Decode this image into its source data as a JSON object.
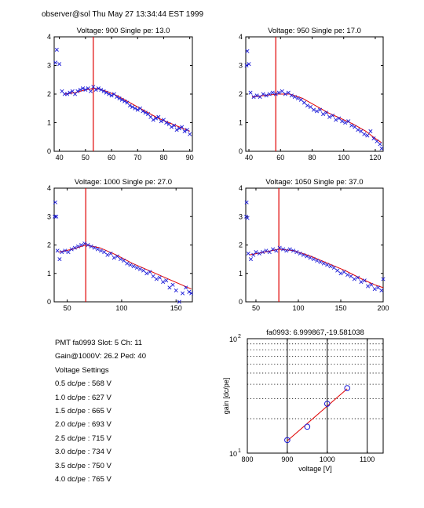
{
  "header": "observer@sol Thu May 27 13:34:44 EST 1999",
  "info": {
    "pmt_line": "PMT fa0993 Slot: 5 Ch: 11",
    "gain_line": "Gain@1000V: 26.2 Ped: 40",
    "settings_title": "Voltage Settings",
    "settings": [
      "0.5 dc/pe : 568 V",
      "1.0 dc/pe : 627 V",
      "1.5 dc/pe : 665 V",
      "2.0 dc/pe : 693 V",
      "2.5 dc/pe : 715 V",
      "3.0 dc/pe : 734 V",
      "3.5 dc/pe : 750 V",
      "4.0 dc/pe : 765 V"
    ]
  },
  "chart_data": [
    {
      "type": "scatter",
      "title": "Voltage: 900 Single pe: 13.0",
      "xlim": [
        38,
        91
      ],
      "ylim": [
        0,
        4
      ],
      "xticks": [
        40,
        50,
        60,
        70,
        80,
        90
      ],
      "yticks": [
        0,
        1,
        2,
        3,
        4
      ],
      "vline": 53,
      "fit": [
        [
          42,
          2.0
        ],
        [
          46,
          2.05
        ],
        [
          50,
          2.15
        ],
        [
          54,
          2.2
        ],
        [
          58,
          2.1
        ],
        [
          62,
          1.95
        ],
        [
          66,
          1.75
        ],
        [
          70,
          1.55
        ],
        [
          74,
          1.35
        ],
        [
          78,
          1.15
        ],
        [
          82,
          1.0
        ],
        [
          86,
          0.85
        ],
        [
          90,
          0.7
        ]
      ],
      "points": [
        [
          38.5,
          3.1
        ],
        [
          39,
          3.55
        ],
        [
          40,
          3.05
        ],
        [
          41,
          2.1
        ],
        [
          42,
          2.0
        ],
        [
          43,
          2.0
        ],
        [
          44,
          2.05
        ],
        [
          45,
          2.1
        ],
        [
          46,
          2.0
        ],
        [
          47,
          2.1
        ],
        [
          48,
          2.15
        ],
        [
          49,
          2.2
        ],
        [
          50,
          2.15
        ],
        [
          51,
          2.2
        ],
        [
          52,
          2.1
        ],
        [
          53,
          2.25
        ],
        [
          54,
          2.15
        ],
        [
          55,
          2.2
        ],
        [
          56,
          2.15
        ],
        [
          57,
          2.1
        ],
        [
          58,
          2.05
        ],
        [
          59,
          2.0
        ],
        [
          60,
          1.95
        ],
        [
          61,
          2.0
        ],
        [
          62,
          1.9
        ],
        [
          63,
          1.85
        ],
        [
          64,
          1.8
        ],
        [
          65,
          1.75
        ],
        [
          66,
          1.7
        ],
        [
          67,
          1.6
        ],
        [
          68,
          1.55
        ],
        [
          69,
          1.5
        ],
        [
          70,
          1.45
        ],
        [
          71,
          1.5
        ],
        [
          72,
          1.4
        ],
        [
          73,
          1.35
        ],
        [
          74,
          1.3
        ],
        [
          75,
          1.2
        ],
        [
          76,
          1.1
        ],
        [
          77,
          1.15
        ],
        [
          78,
          1.2
        ],
        [
          79,
          1.05
        ],
        [
          80,
          1.1
        ],
        [
          81,
          1.0
        ],
        [
          82,
          0.95
        ],
        [
          83,
          0.85
        ],
        [
          84,
          0.9
        ],
        [
          85,
          0.75
        ],
        [
          86,
          0.8
        ],
        [
          87,
          0.85
        ],
        [
          88,
          0.7
        ],
        [
          89,
          0.75
        ],
        [
          90,
          0.6
        ]
      ]
    },
    {
      "type": "scatter",
      "title": "Voltage: 950 Single pe: 17.0",
      "xlim": [
        38,
        125
      ],
      "ylim": [
        0,
        4
      ],
      "xticks": [
        40,
        60,
        80,
        100,
        120
      ],
      "yticks": [
        0,
        1,
        2,
        3,
        4
      ],
      "vline": 57,
      "fit": [
        [
          42,
          1.9
        ],
        [
          50,
          1.95
        ],
        [
          58,
          2.0
        ],
        [
          66,
          2.0
        ],
        [
          74,
          1.85
        ],
        [
          82,
          1.6
        ],
        [
          90,
          1.35
        ],
        [
          98,
          1.15
        ],
        [
          106,
          0.95
        ],
        [
          114,
          0.7
        ],
        [
          120,
          0.45
        ],
        [
          124,
          0.3
        ]
      ],
      "points": [
        [
          38.5,
          3.0
        ],
        [
          39,
          3.5
        ],
        [
          40,
          3.05
        ],
        [
          41,
          2.05
        ],
        [
          43,
          1.9
        ],
        [
          45,
          1.95
        ],
        [
          47,
          1.9
        ],
        [
          49,
          2.0
        ],
        [
          51,
          1.95
        ],
        [
          53,
          2.0
        ],
        [
          55,
          2.05
        ],
        [
          57,
          2.0
        ],
        [
          59,
          2.05
        ],
        [
          61,
          2.1
        ],
        [
          63,
          2.0
        ],
        [
          65,
          2.05
        ],
        [
          67,
          1.95
        ],
        [
          69,
          1.9
        ],
        [
          71,
          1.85
        ],
        [
          73,
          1.8
        ],
        [
          75,
          1.7
        ],
        [
          77,
          1.6
        ],
        [
          79,
          1.55
        ],
        [
          81,
          1.45
        ],
        [
          83,
          1.4
        ],
        [
          85,
          1.45
        ],
        [
          87,
          1.3
        ],
        [
          89,
          1.35
        ],
        [
          91,
          1.2
        ],
        [
          93,
          1.25
        ],
        [
          95,
          1.1
        ],
        [
          97,
          1.15
        ],
        [
          99,
          1.05
        ],
        [
          101,
          1.0
        ],
        [
          103,
          1.05
        ],
        [
          105,
          0.9
        ],
        [
          107,
          0.85
        ],
        [
          109,
          0.75
        ],
        [
          111,
          0.7
        ],
        [
          113,
          0.6
        ],
        [
          115,
          0.55
        ],
        [
          117,
          0.7
        ],
        [
          119,
          0.45
        ],
        [
          121,
          0.35
        ],
        [
          123,
          0.25
        ],
        [
          124,
          0.1
        ]
      ]
    },
    {
      "type": "scatter",
      "title": "Voltage: 1000 Single pe: 27.0",
      "xlim": [
        38,
        165
      ],
      "ylim": [
        0,
        4
      ],
      "xticks": [
        50,
        100,
        150
      ],
      "yticks": [
        0,
        1,
        2,
        3,
        4
      ],
      "vline": 67,
      "fit": [
        [
          42,
          1.75
        ],
        [
          55,
          1.85
        ],
        [
          67,
          2.0
        ],
        [
          80,
          1.9
        ],
        [
          95,
          1.65
        ],
        [
          110,
          1.35
        ],
        [
          125,
          1.1
        ],
        [
          140,
          0.85
        ],
        [
          152,
          0.65
        ],
        [
          164,
          0.45
        ]
      ],
      "points": [
        [
          38.5,
          3.0
        ],
        [
          39,
          3.5
        ],
        [
          40,
          3.0
        ],
        [
          41,
          1.8
        ],
        [
          43,
          1.5
        ],
        [
          45,
          1.75
        ],
        [
          48,
          1.8
        ],
        [
          51,
          1.75
        ],
        [
          54,
          1.85
        ],
        [
          57,
          1.9
        ],
        [
          60,
          1.95
        ],
        [
          63,
          2.0
        ],
        [
          66,
          2.05
        ],
        [
          69,
          2.0
        ],
        [
          72,
          1.95
        ],
        [
          75,
          1.9
        ],
        [
          78,
          1.85
        ],
        [
          81,
          1.8
        ],
        [
          84,
          1.75
        ],
        [
          87,
          1.65
        ],
        [
          90,
          1.7
        ],
        [
          93,
          1.55
        ],
        [
          96,
          1.6
        ],
        [
          99,
          1.5
        ],
        [
          102,
          1.45
        ],
        [
          105,
          1.35
        ],
        [
          108,
          1.3
        ],
        [
          111,
          1.25
        ],
        [
          114,
          1.2
        ],
        [
          117,
          1.15
        ],
        [
          120,
          1.1
        ],
        [
          123,
          1.0
        ],
        [
          126,
          1.05
        ],
        [
          129,
          0.9
        ],
        [
          132,
          0.8
        ],
        [
          135,
          0.85
        ],
        [
          138,
          0.7
        ],
        [
          141,
          0.75
        ],
        [
          144,
          0.5
        ],
        [
          147,
          0.6
        ],
        [
          150,
          0.4
        ],
        [
          153,
          0.0
        ],
        [
          156,
          0.3
        ],
        [
          159,
          0.5
        ],
        [
          162,
          0.35
        ],
        [
          164,
          0.3
        ]
      ]
    },
    {
      "type": "scatter",
      "title": "Voltage: 1050 Single pe: 37.0",
      "xlim": [
        38,
        200
      ],
      "ylim": [
        0,
        4
      ],
      "xticks": [
        50,
        100,
        150,
        200
      ],
      "yticks": [
        0,
        1,
        2,
        3,
        4
      ],
      "vline": 77,
      "fit": [
        [
          42,
          1.65
        ],
        [
          60,
          1.75
        ],
        [
          77,
          1.85
        ],
        [
          95,
          1.8
        ],
        [
          115,
          1.6
        ],
        [
          135,
          1.35
        ],
        [
          155,
          1.1
        ],
        [
          175,
          0.8
        ],
        [
          190,
          0.6
        ],
        [
          200,
          0.5
        ]
      ],
      "points": [
        [
          38.5,
          3.0
        ],
        [
          39,
          3.5
        ],
        [
          40,
          2.95
        ],
        [
          41,
          1.7
        ],
        [
          44,
          1.5
        ],
        [
          47,
          1.65
        ],
        [
          50,
          1.75
        ],
        [
          54,
          1.7
        ],
        [
          58,
          1.75
        ],
        [
          62,
          1.8
        ],
        [
          66,
          1.75
        ],
        [
          70,
          1.85
        ],
        [
          74,
          1.8
        ],
        [
          78,
          1.9
        ],
        [
          82,
          1.85
        ],
        [
          86,
          1.8
        ],
        [
          90,
          1.85
        ],
        [
          94,
          1.8
        ],
        [
          98,
          1.75
        ],
        [
          102,
          1.7
        ],
        [
          106,
          1.65
        ],
        [
          110,
          1.6
        ],
        [
          114,
          1.55
        ],
        [
          118,
          1.5
        ],
        [
          122,
          1.45
        ],
        [
          126,
          1.4
        ],
        [
          130,
          1.35
        ],
        [
          134,
          1.3
        ],
        [
          138,
          1.25
        ],
        [
          142,
          1.2
        ],
        [
          146,
          1.1
        ],
        [
          150,
          1.0
        ],
        [
          154,
          1.05
        ],
        [
          158,
          0.95
        ],
        [
          162,
          0.9
        ],
        [
          166,
          0.8
        ],
        [
          170,
          0.85
        ],
        [
          174,
          0.7
        ],
        [
          178,
          0.75
        ],
        [
          182,
          0.55
        ],
        [
          186,
          0.6
        ],
        [
          190,
          0.45
        ],
        [
          194,
          0.5
        ],
        [
          198,
          0.4
        ],
        [
          200,
          0.8
        ]
      ]
    },
    {
      "type": "scatter",
      "title": "fa0993: 6.999867,-19.581038",
      "xlabel": "voltage [V]",
      "ylabel": "gain [dc/pe]",
      "xlim": [
        800,
        1140
      ],
      "ylim": [
        10,
        100
      ],
      "yscale": "log",
      "xticks": [
        800,
        900,
        1000,
        1100
      ],
      "yticks": [
        {
          "value": 10,
          "base": "10",
          "exp": "1"
        },
        {
          "value": 100,
          "base": "10",
          "exp": "2"
        }
      ],
      "ygrid": [
        20,
        30,
        40,
        50,
        60,
        70,
        80,
        90
      ],
      "xgrid": [
        900,
        1000,
        1100
      ],
      "x": [
        900,
        950,
        1000,
        1050
      ],
      "y": [
        13.0,
        17.0,
        27.0,
        37.0
      ],
      "fit": [
        [
          900,
          12.8
        ],
        [
          1050,
          36.5
        ]
      ]
    }
  ]
}
